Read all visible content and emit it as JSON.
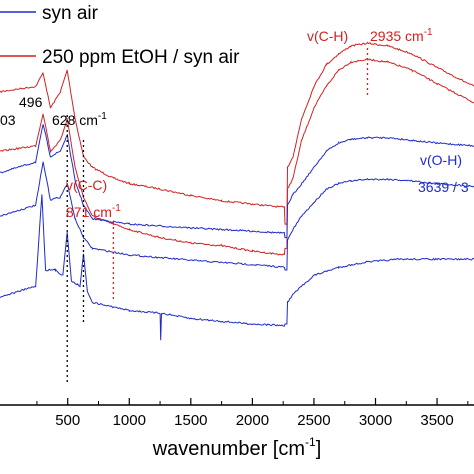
{
  "chart_data": {
    "type": "line",
    "xlabel": "wavenumber [cm",
    "xlabel_sup": "-1",
    "xlabel_close": "]",
    "xlim": [
      -50,
      3800
    ],
    "x_ticks": [
      500,
      1000,
      1500,
      2000,
      2500,
      3000,
      3500
    ],
    "x_tick_labels": [
      "500",
      "1000",
      "1500",
      "2000",
      "2500",
      "3000",
      "3500"
    ],
    "colors": {
      "syn_air": "#1f2bcc",
      "etoh": "#d22222"
    },
    "legend": [
      {
        "label": "syn air",
        "color": "#1f2bcc"
      },
      {
        "label": "250 ppm EtOH / syn air",
        "color": "#d22222"
      }
    ],
    "series": [
      {
        "name": "250 ppm EtOH / syn air",
        "color": "#d22222",
        "points": [
          [
            -50,
            0.83
          ],
          [
            240,
            0.84
          ],
          [
            300,
            0.865
          ],
          [
            360,
            0.8
          ],
          [
            440,
            0.83
          ],
          [
            496,
            0.87
          ],
          [
            560,
            0.78
          ],
          [
            628,
            0.71
          ],
          [
            700,
            0.69
          ],
          [
            871,
            0.67
          ],
          [
            1000,
            0.66
          ],
          [
            1250,
            0.65
          ],
          [
            1500,
            0.638
          ],
          [
            1750,
            0.628
          ],
          [
            2000,
            0.622
          ],
          [
            2260,
            0.616
          ],
          [
            2265,
            0.585
          ],
          [
            2280,
            0.585
          ],
          [
            2285,
            0.69
          ],
          [
            2330,
            0.71
          ],
          [
            2400,
            0.78
          ],
          [
            2500,
            0.84
          ],
          [
            2600,
            0.88
          ],
          [
            2700,
            0.9
          ],
          [
            2800,
            0.915
          ],
          [
            2935,
            0.92
          ],
          [
            3100,
            0.915
          ],
          [
            3300,
            0.9
          ],
          [
            3500,
            0.875
          ],
          [
            3800,
            0.84
          ]
        ]
      },
      {
        "name": "250 ppm EtOH / syn air",
        "color": "#d22222",
        "points": [
          [
            -50,
            0.72
          ],
          [
            240,
            0.73
          ],
          [
            300,
            0.79
          ],
          [
            360,
            0.72
          ],
          [
            440,
            0.74
          ],
          [
            496,
            0.78
          ],
          [
            560,
            0.69
          ],
          [
            628,
            0.635
          ],
          [
            700,
            0.6
          ],
          [
            871,
            0.585
          ],
          [
            1000,
            0.575
          ],
          [
            1250,
            0.56
          ],
          [
            1500,
            0.55
          ],
          [
            1750,
            0.545
          ],
          [
            2000,
            0.535
          ],
          [
            2260,
            0.528
          ],
          [
            2265,
            0.54
          ],
          [
            2280,
            0.54
          ],
          [
            2285,
            0.65
          ],
          [
            2330,
            0.67
          ],
          [
            2400,
            0.74
          ],
          [
            2500,
            0.8
          ],
          [
            2600,
            0.84
          ],
          [
            2700,
            0.87
          ],
          [
            2800,
            0.885
          ],
          [
            2935,
            0.89
          ],
          [
            3100,
            0.885
          ],
          [
            3300,
            0.87
          ],
          [
            3500,
            0.845
          ],
          [
            3800,
            0.81
          ]
        ]
      },
      {
        "name": "syn air",
        "color": "#1f2bcc",
        "points": [
          [
            -50,
            0.68
          ],
          [
            240,
            0.7
          ],
          [
            300,
            0.77
          ],
          [
            360,
            0.71
          ],
          [
            440,
            0.72
          ],
          [
            496,
            0.75
          ],
          [
            560,
            0.665
          ],
          [
            628,
            0.62
          ],
          [
            700,
            0.595
          ],
          [
            1000,
            0.585
          ],
          [
            1500,
            0.578
          ],
          [
            2000,
            0.572
          ],
          [
            2260,
            0.568
          ],
          [
            2265,
            0.56
          ],
          [
            2280,
            0.56
          ],
          [
            2285,
            0.62
          ],
          [
            2330,
            0.64
          ],
          [
            2400,
            0.66
          ],
          [
            2500,
            0.69
          ],
          [
            2600,
            0.72
          ],
          [
            2700,
            0.735
          ],
          [
            2800,
            0.742
          ],
          [
            2935,
            0.745
          ],
          [
            3100,
            0.745
          ],
          [
            3300,
            0.74
          ],
          [
            3500,
            0.735
          ],
          [
            3800,
            0.73
          ]
        ]
      },
      {
        "name": "syn air",
        "color": "#1f2bcc",
        "points": [
          [
            -50,
            0.6
          ],
          [
            240,
            0.62
          ],
          [
            300,
            0.7
          ],
          [
            360,
            0.63
          ],
          [
            440,
            0.635
          ],
          [
            496,
            0.66
          ],
          [
            560,
            0.595
          ],
          [
            628,
            0.56
          ],
          [
            700,
            0.54
          ],
          [
            1000,
            0.528
          ],
          [
            1500,
            0.518
          ],
          [
            2000,
            0.51
          ],
          [
            2260,
            0.505
          ],
          [
            2265,
            0.5
          ],
          [
            2280,
            0.5
          ],
          [
            2285,
            0.555
          ],
          [
            2330,
            0.575
          ],
          [
            2400,
            0.6
          ],
          [
            2500,
            0.625
          ],
          [
            2600,
            0.65
          ],
          [
            2700,
            0.66
          ],
          [
            2800,
            0.665
          ],
          [
            2935,
            0.668
          ],
          [
            3100,
            0.668
          ],
          [
            3300,
            0.665
          ],
          [
            3500,
            0.66
          ],
          [
            3800,
            0.655
          ]
        ]
      },
      {
        "name": "syn air",
        "color": "#1f2bcc",
        "points": [
          [
            -50,
            0.45
          ],
          [
            240,
            0.47
          ],
          [
            290,
            0.64
          ],
          [
            320,
            0.5
          ],
          [
            400,
            0.5
          ],
          [
            460,
            0.49
          ],
          [
            496,
            0.57
          ],
          [
            530,
            0.48
          ],
          [
            600,
            0.47
          ],
          [
            628,
            0.53
          ],
          [
            660,
            0.46
          ],
          [
            700,
            0.44
          ],
          [
            1000,
            0.425
          ],
          [
            1250,
            0.42
          ],
          [
            1255,
            0.37
          ],
          [
            1262,
            0.42
          ],
          [
            1500,
            0.41
          ],
          [
            2000,
            0.4
          ],
          [
            2260,
            0.397
          ],
          [
            2265,
            0.4
          ],
          [
            2280,
            0.4
          ],
          [
            2285,
            0.44
          ],
          [
            2330,
            0.455
          ],
          [
            2400,
            0.47
          ],
          [
            2500,
            0.49
          ],
          [
            2700,
            0.505
          ],
          [
            2935,
            0.515
          ],
          [
            3200,
            0.52
          ],
          [
            3500,
            0.52
          ],
          [
            3800,
            0.52
          ]
        ]
      }
    ],
    "markers": [
      {
        "x": 496,
        "label": "496"
      },
      {
        "x": 628,
        "label": "628 cm"
      },
      {
        "x": 871,
        "label": "v(C-C)"
      },
      {
        "x": 2935,
        "label": "v(C-H)"
      }
    ],
    "annotations": {
      "peak_303": "03",
      "peak_496": "496",
      "peak_628": "628 cm",
      "peak_628_sup": "-1",
      "cc_label": "v(C-C)",
      "cc_value": "871 cm",
      "cc_value_sup": "-1",
      "ch_label": "v(C-H)",
      "ch_value": "2935 cm",
      "ch_value_sup": "-1",
      "oh_label": "v(O-H)",
      "oh_value": "3639 / 3"
    }
  }
}
